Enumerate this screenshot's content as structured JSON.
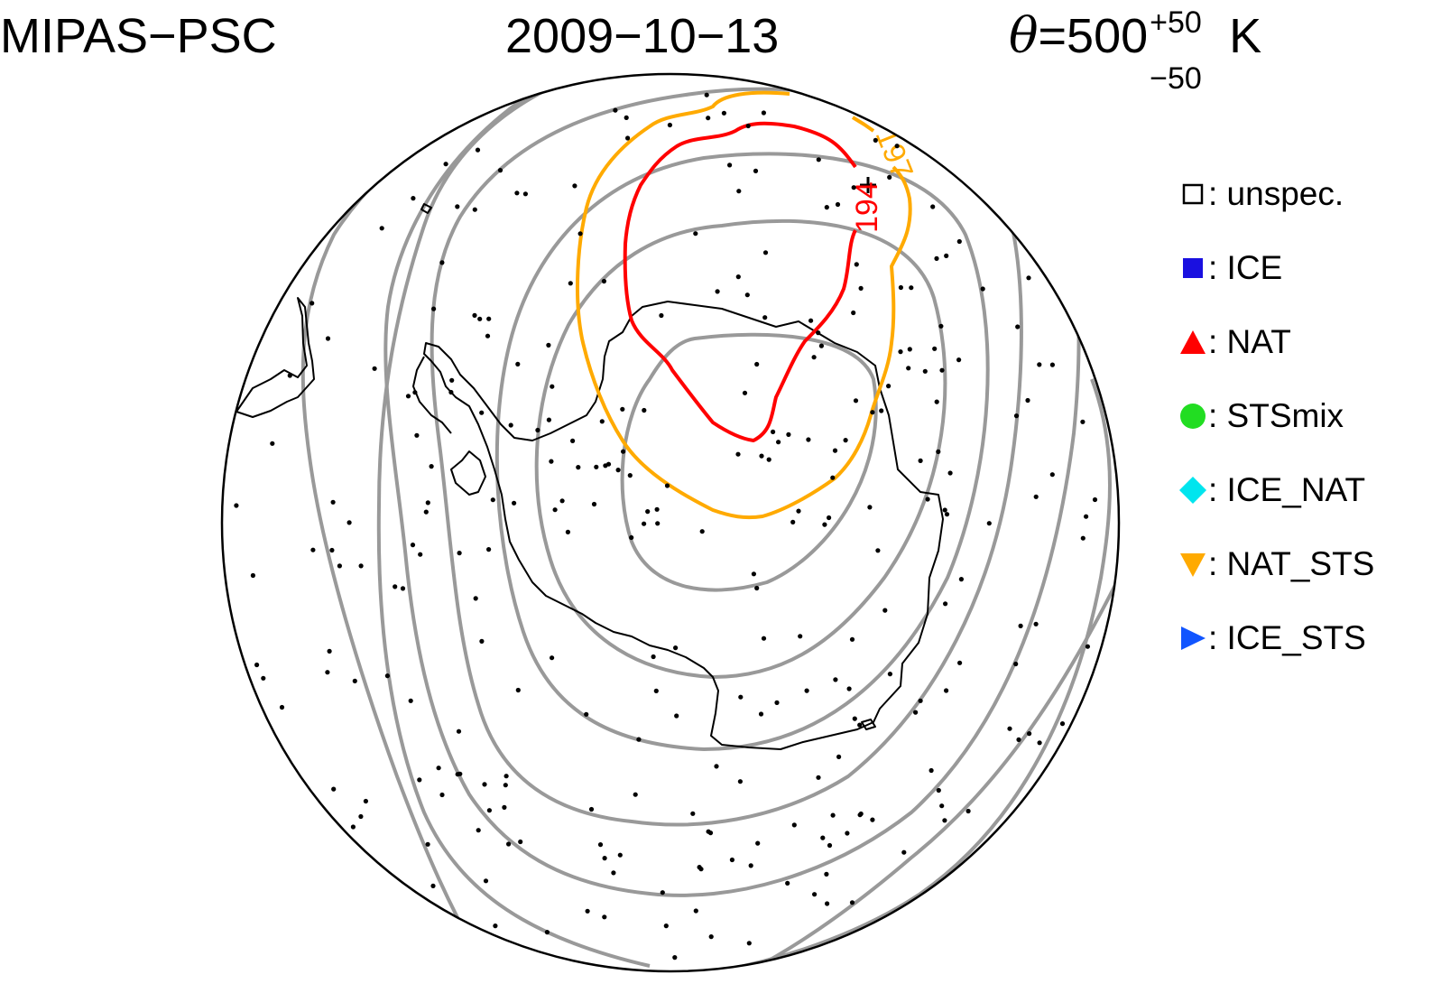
{
  "header": {
    "instrument": "MIPAS−PSC",
    "date": "2009−10−13",
    "theta_symbol": "θ",
    "theta_eq": "=500",
    "theta_sup": "+50",
    "theta_sub": "−50",
    "theta_unit": "K"
  },
  "map": {
    "projection": "south polar stereographic",
    "contour_labels": {
      "red": "194",
      "orange": "197"
    },
    "colors": {
      "grey_contours": "#999999",
      "red_contour": "#ff0000",
      "orange_contour": "#ffaa00",
      "coastline": "#000000",
      "points": "#000000"
    }
  },
  "legend": [
    {
      "symbol": "open-square-icon",
      "label": ": unspec.",
      "color": "#000000"
    },
    {
      "symbol": "filled-square-icon",
      "label": ": ICE",
      "color": "#1a10e0"
    },
    {
      "symbol": "triangle-up-icon",
      "label": ": NAT",
      "color": "#ff0000"
    },
    {
      "symbol": "circle-icon",
      "label": ": STSmix",
      "color": "#22dd22"
    },
    {
      "symbol": "diamond-icon",
      "label": ": ICE_NAT",
      "color": "#00e5ee"
    },
    {
      "symbol": "triangle-down-icon",
      "label": ": NAT_STS",
      "color": "#ffaa00"
    },
    {
      "symbol": "triangle-right-icon",
      "label": ": ICE_STS",
      "color": "#1155ff"
    }
  ]
}
